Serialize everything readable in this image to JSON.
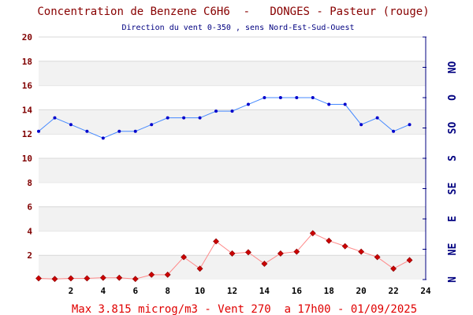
{
  "title": "Concentration de Benzene C6H6  -   DONGES - Pasteur (rouge)",
  "subtitle": "Direction du vent 0-350 , sens Nord-Est-Sud-Ouest",
  "footer": "Max 3.815 microg/m3 - Vent 270  a 17h00 - 01/09/2025",
  "colors": {
    "title": "#880000",
    "subtitle": "#000080",
    "footer": "#e00000",
    "left_ticks": "#800000",
    "right_axis": "#000080",
    "benzene": "#cc0000",
    "benzene_line": "#ff8888",
    "wind": "#0000cc",
    "wind_line": "#4488ff",
    "band": "#f2f2f2",
    "grid": "#d8d8d8"
  },
  "chart_data": {
    "type": "line",
    "xlim": [
      0,
      24
    ],
    "x_ticks": [
      "2",
      "4",
      "6",
      "8",
      "10",
      "12",
      "14",
      "16",
      "18",
      "20",
      "22",
      "24"
    ],
    "ylim_left": [
      0,
      20
    ],
    "y_ticks_left": [
      "2",
      "4",
      "6",
      "8",
      "10",
      "12",
      "14",
      "16",
      "18",
      "20"
    ],
    "ylim_right": [
      0,
      360
    ],
    "y_ticks_right": [
      "N",
      "NE",
      "E",
      "SE",
      "S",
      "SO",
      "O",
      "NO"
    ],
    "grid": true,
    "series": [
      {
        "key": "benzene",
        "marker": "diamond",
        "x": [
          0,
          1,
          2,
          3,
          4,
          5,
          6,
          7,
          8,
          9,
          10,
          11,
          12,
          13,
          14,
          15,
          16,
          17,
          18,
          19,
          20,
          21,
          22,
          23
        ],
        "values": [
          0.1,
          0.05,
          0.1,
          0.1,
          0.15,
          0.15,
          0.05,
          0.4,
          0.4,
          1.85,
          0.9,
          3.15,
          2.15,
          2.25,
          1.3,
          2.15,
          2.3,
          3.82,
          3.2,
          2.75,
          2.3,
          1.85,
          0.9,
          1.6
        ]
      },
      {
        "key": "wind",
        "marker": "dot",
        "x": [
          0,
          1,
          2,
          3,
          4,
          5,
          6,
          7,
          8,
          9,
          10,
          11,
          12,
          13,
          14,
          15,
          16,
          17,
          18,
          19,
          20,
          21,
          22,
          23
        ],
        "values": [
          220,
          240,
          230,
          220,
          210,
          220,
          220,
          230,
          240,
          240,
          240,
          250,
          250,
          260,
          270,
          270,
          270,
          270,
          260,
          260,
          230,
          240,
          220,
          230
        ]
      }
    ]
  }
}
